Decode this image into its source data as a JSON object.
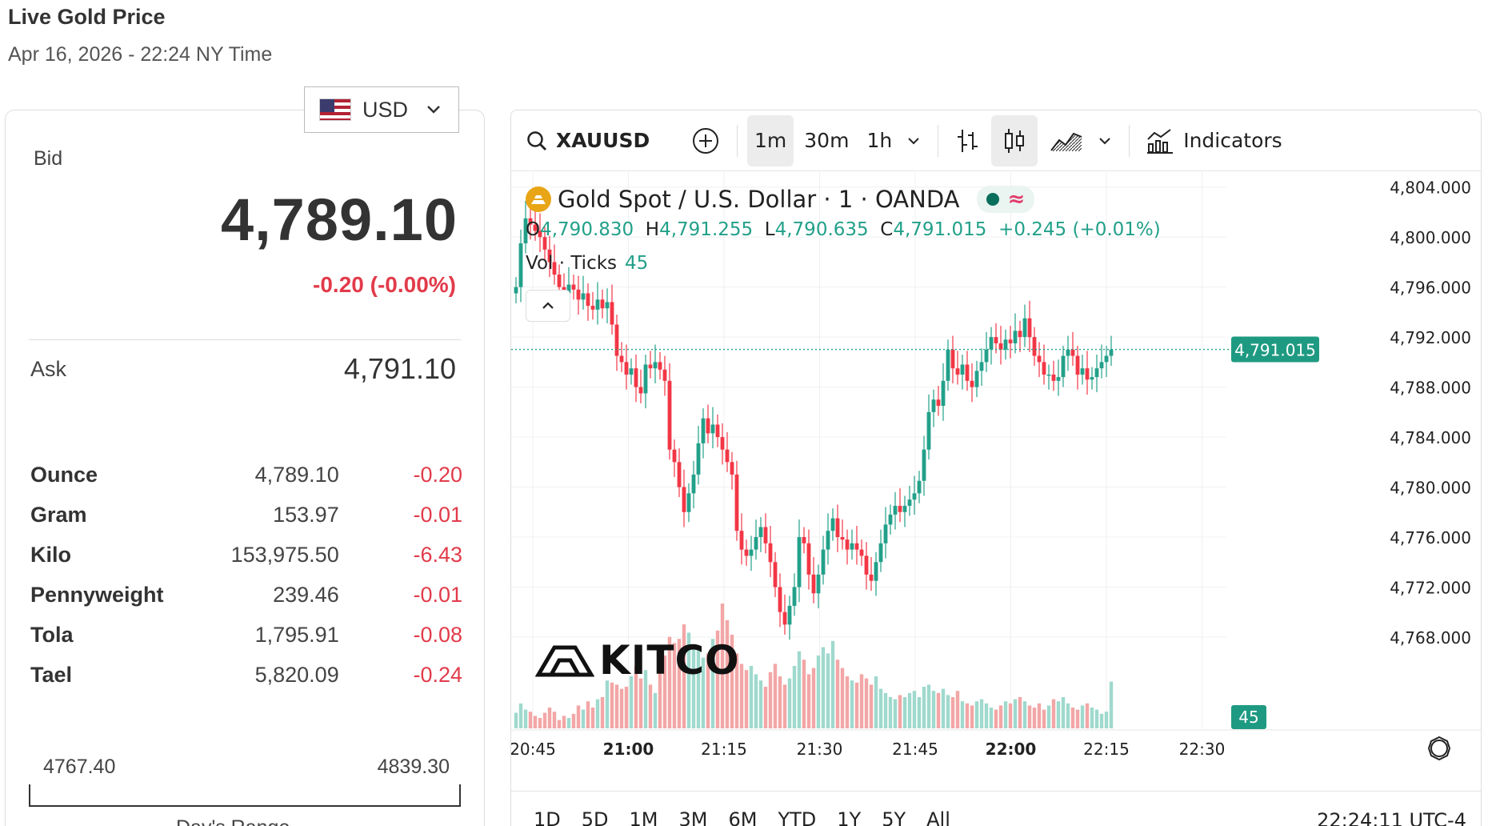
{
  "header": {
    "title": "Live Gold Price",
    "subtitle": "Apr 16, 2026 - 22:24 NY Time"
  },
  "currency": {
    "selected": "USD",
    "flag_icon": "us-flag-icon"
  },
  "bid": {
    "label": "Bid",
    "value": "4,789.10",
    "change": "-0.20 (-0.00%)"
  },
  "ask": {
    "label": "Ask",
    "value": "4,791.10"
  },
  "units": [
    {
      "name": "Ounce",
      "value": "4,789.10",
      "change": "-0.20"
    },
    {
      "name": "Gram",
      "value": "153.97",
      "change": "-0.01"
    },
    {
      "name": "Kilo",
      "value": "153,975.50",
      "change": "-6.43"
    },
    {
      "name": "Pennyweight",
      "value": "239.46",
      "change": "-0.01"
    },
    {
      "name": "Tola",
      "value": "1,795.91",
      "change": "-0.08"
    },
    {
      "name": "Tael",
      "value": "5,820.09",
      "change": "-0.24"
    }
  ],
  "day_range": {
    "low": "4767.40",
    "high": "4839.30",
    "label": "Day's Range"
  },
  "toolbar": {
    "symbol": "XAUUSD",
    "intervals": [
      "1m",
      "30m",
      "1h"
    ],
    "active_interval": "1m",
    "indicators_label": "Indicators"
  },
  "legend": {
    "title": "Gold Spot / U.S. Dollar · 1 · OANDA",
    "o_label": "O",
    "o": "4,790.830",
    "h_label": "H",
    "h": "4,791.255",
    "l_label": "L",
    "l": "4,790.635",
    "c_label": "C",
    "c": "4,791.015",
    "chg": "+0.245 (+0.01%)",
    "vol_label": "Vol · Ticks",
    "vol_value": "45"
  },
  "watermark": "KITCO",
  "time_ranges": [
    "1D",
    "5D",
    "1M",
    "3M",
    "6M",
    "YTD",
    "1Y",
    "5Y",
    "All"
  ],
  "clock": "22:24:11 UTC-4",
  "colors": {
    "up": "#22a089",
    "down": "#f23645",
    "vol_up": "#9fd9cd",
    "vol_down": "#f3a6a6"
  },
  "chart_data": {
    "type": "candlestick",
    "y_ticks": [
      "4,804.000",
      "4,800.000",
      "4,796.000",
      "4,792.000",
      "4,788.000",
      "4,784.000",
      "4,780.000",
      "4,776.000",
      "4,772.000",
      "4,768.000"
    ],
    "y_tick_values": [
      4804,
      4800,
      4796,
      4792,
      4788,
      4784,
      4780,
      4776,
      4772,
      4768
    ],
    "ylim": [
      4765.5,
      4805.2
    ],
    "x_ticks": [
      "20:45",
      "21:00",
      "21:15",
      "21:30",
      "21:45",
      "22:00",
      "22:15",
      "22:30"
    ],
    "x_bold_ticks": [
      "21:00",
      "22:00"
    ],
    "last_price_label": "4,791.015",
    "last_price": 4791.015,
    "last_volume_label": "45",
    "close_series": [
      4796.0,
      4799.5,
      4801.5,
      4801.0,
      4800.5,
      4800.0,
      4799.0,
      4798.0,
      4797.0,
      4796.0,
      4795.5,
      4796.2,
      4795.8,
      4795.0,
      4795.5,
      4794.5,
      4794.2,
      4795.0,
      4794.3,
      4794.8,
      4793.0,
      4790.5,
      4790.0,
      4789.0,
      4789.5,
      4788.0,
      4787.5,
      4789.8,
      4789.5,
      4790.0,
      4789.4,
      4788.5,
      4783.0,
      4782.0,
      4780.0,
      4778.0,
      4779.5,
      4781.0,
      4783.5,
      4785.5,
      4784.3,
      4785.0,
      4784.0,
      4783.0,
      4782.0,
      4781.0,
      4776.5,
      4775.0,
      4774.5,
      4775.0,
      4776.0,
      4776.8,
      4775.5,
      4774.0,
      4772.0,
      4770.0,
      4769.0,
      4770.5,
      4772.0,
      4776.0,
      4775.5,
      4773.0,
      4771.5,
      4773.0,
      4775.0,
      4776.5,
      4777.5,
      4776.0,
      4775.8,
      4775.0,
      4775.5,
      4775.0,
      4774.5,
      4773.0,
      4772.5,
      4774.0,
      4775.5,
      4777.0,
      4777.8,
      4778.5,
      4778.0,
      4778.5,
      4779.0,
      4779.5,
      4780.5,
      4783.0,
      4786.0,
      4787.0,
      4786.5,
      4788.5,
      4791.0,
      4789.5,
      4789.0,
      4789.8,
      4788.5,
      4788.0,
      4789.3,
      4790.0,
      4791.0,
      4792.0,
      4791.5,
      4791.0,
      4791.8,
      4791.5,
      4792.5,
      4792.0,
      4793.5,
      4792.0,
      4790.5,
      4790.0,
      4789.0,
      4789.0,
      4788.5,
      4788.8,
      4790.5,
      4791.0,
      4790.5,
      4789.0,
      4789.5,
      4788.6,
      4788.8,
      4789.5,
      4790.0,
      4790.5,
      4791.0
    ],
    "volume_series": [
      15,
      24,
      18,
      16,
      12,
      10,
      15,
      20,
      16,
      8,
      12,
      10,
      14,
      22,
      18,
      26,
      20,
      28,
      30,
      46,
      44,
      42,
      38,
      40,
      50,
      60,
      48,
      56,
      42,
      34,
      58,
      70,
      88,
      82,
      86,
      100,
      92,
      80,
      76,
      68,
      72,
      86,
      94,
      120,
      104,
      90,
      72,
      62,
      56,
      60,
      52,
      46,
      40,
      54,
      62,
      50,
      42,
      48,
      60,
      74,
      66,
      52,
      58,
      70,
      78,
      72,
      84,
      66,
      58,
      50,
      46,
      44,
      52,
      48,
      42,
      50,
      38,
      34,
      30,
      28,
      32,
      30,
      34,
      36,
      30,
      40,
      42,
      36,
      34,
      38,
      32,
      30,
      36,
      26,
      24,
      22,
      26,
      28,
      24,
      20,
      18,
      22,
      26,
      24,
      28,
      30,
      26,
      22,
      20,
      24,
      18,
      22,
      28,
      26,
      30,
      24,
      20,
      18,
      22,
      24,
      20,
      18,
      14,
      16,
      45
    ]
  }
}
